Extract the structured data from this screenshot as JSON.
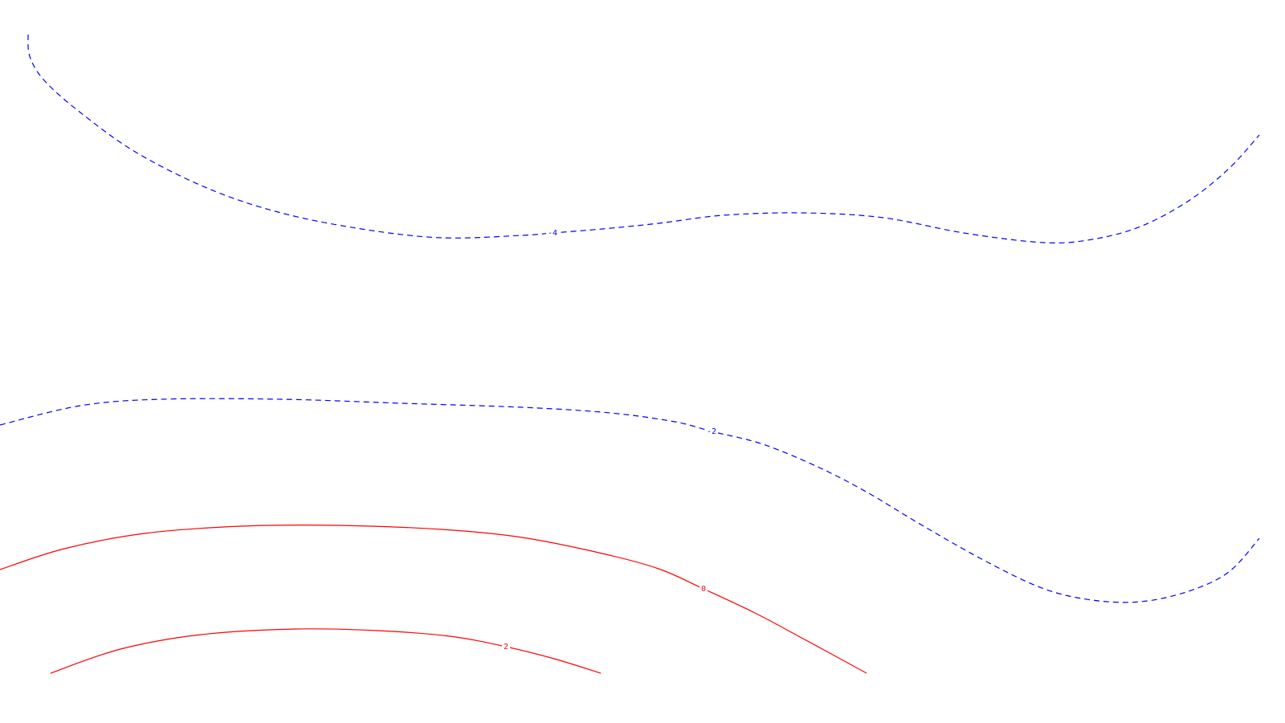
{
  "chart_data": {
    "type": "contour",
    "grid": false,
    "axes_visible": false,
    "contours": [
      {
        "level": "-4",
        "color": "#0000ff",
        "style": "dashed",
        "points": [
          [
            35,
            43
          ],
          [
            37,
            70
          ],
          [
            55,
            100
          ],
          [
            100,
            140
          ],
          [
            170,
            190
          ],
          [
            260,
            235
          ],
          [
            350,
            265
          ],
          [
            450,
            285
          ],
          [
            550,
            296
          ],
          [
            650,
            293
          ],
          [
            688,
            290
          ],
          [
            750,
            285
          ],
          [
            820,
            278
          ],
          [
            900,
            268
          ],
          [
            1000,
            265
          ],
          [
            1100,
            271
          ],
          [
            1200,
            290
          ],
          [
            1300,
            302
          ],
          [
            1360,
            298
          ],
          [
            1420,
            282
          ],
          [
            1480,
            250
          ],
          [
            1530,
            210
          ],
          [
            1568,
            168
          ]
        ],
        "label_anchor": [
          688,
          290
        ]
      },
      {
        "level": "-2",
        "color": "#0000ff",
        "style": "dashed",
        "points": [
          [
            0,
            529
          ],
          [
            100,
            505
          ],
          [
            200,
            497
          ],
          [
            350,
            497
          ],
          [
            500,
            502
          ],
          [
            650,
            507
          ],
          [
            760,
            514
          ],
          [
            840,
            525
          ],
          [
            886,
            537
          ],
          [
            950,
            553
          ],
          [
            1020,
            582
          ],
          [
            1080,
            613
          ],
          [
            1150,
            655
          ],
          [
            1230,
            700
          ],
          [
            1300,
            733
          ],
          [
            1360,
            747
          ],
          [
            1420,
            749
          ],
          [
            1480,
            736
          ],
          [
            1530,
            712
          ],
          [
            1568,
            670
          ]
        ],
        "label_anchor": [
          886,
          537
        ]
      },
      {
        "level": "0",
        "color": "#ff0000",
        "style": "solid",
        "points": [
          [
            0,
            709
          ],
          [
            80,
            683
          ],
          [
            180,
            664
          ],
          [
            300,
            655
          ],
          [
            420,
            654
          ],
          [
            550,
            659
          ],
          [
            650,
            669
          ],
          [
            750,
            689
          ],
          [
            820,
            708
          ],
          [
            876,
            733
          ],
          [
            940,
            763
          ],
          [
            1000,
            795
          ],
          [
            1079,
            838
          ]
        ],
        "label_anchor": [
          876,
          733
        ]
      },
      {
        "level": "2",
        "color": "#ff0000",
        "style": "solid",
        "points": [
          [
            63,
            838
          ],
          [
            150,
            808
          ],
          [
            250,
            790
          ],
          [
            370,
            783
          ],
          [
            470,
            785
          ],
          [
            560,
            792
          ],
          [
            630,
            805
          ],
          [
            690,
            820
          ],
          [
            748,
            838
          ]
        ],
        "label_anchor": [
          630,
          805
        ]
      }
    ]
  }
}
